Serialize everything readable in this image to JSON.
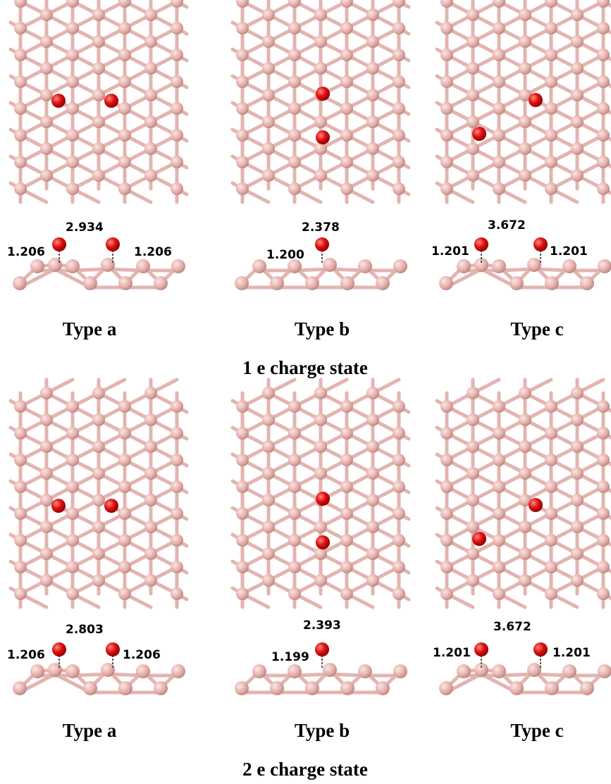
{
  "rows": [
    {
      "panels": [
        {
          "label": "Type a",
          "distances": {
            "top": "2.934",
            "left": "1.206",
            "right": "1.206"
          }
        },
        {
          "label": "Type b",
          "distances": {
            "top": "2.378",
            "left": "1.200"
          }
        },
        {
          "label": "Type c",
          "distances": {
            "top": "3.672",
            "left": "1.201",
            "right": "1.201"
          }
        }
      ],
      "caption": "1 e charge state"
    },
    {
      "panels": [
        {
          "label": "Type a",
          "distances": {
            "top": "2.803",
            "left": "1.206",
            "right": "1.206"
          }
        },
        {
          "label": "Type b",
          "distances": {
            "top": "2.393",
            "left": "1.199"
          }
        },
        {
          "label": "Type c",
          "distances": {
            "top": "3.672",
            "left": "1.201",
            "right": "1.201"
          }
        }
      ],
      "caption": "2 e charge state"
    }
  ]
}
